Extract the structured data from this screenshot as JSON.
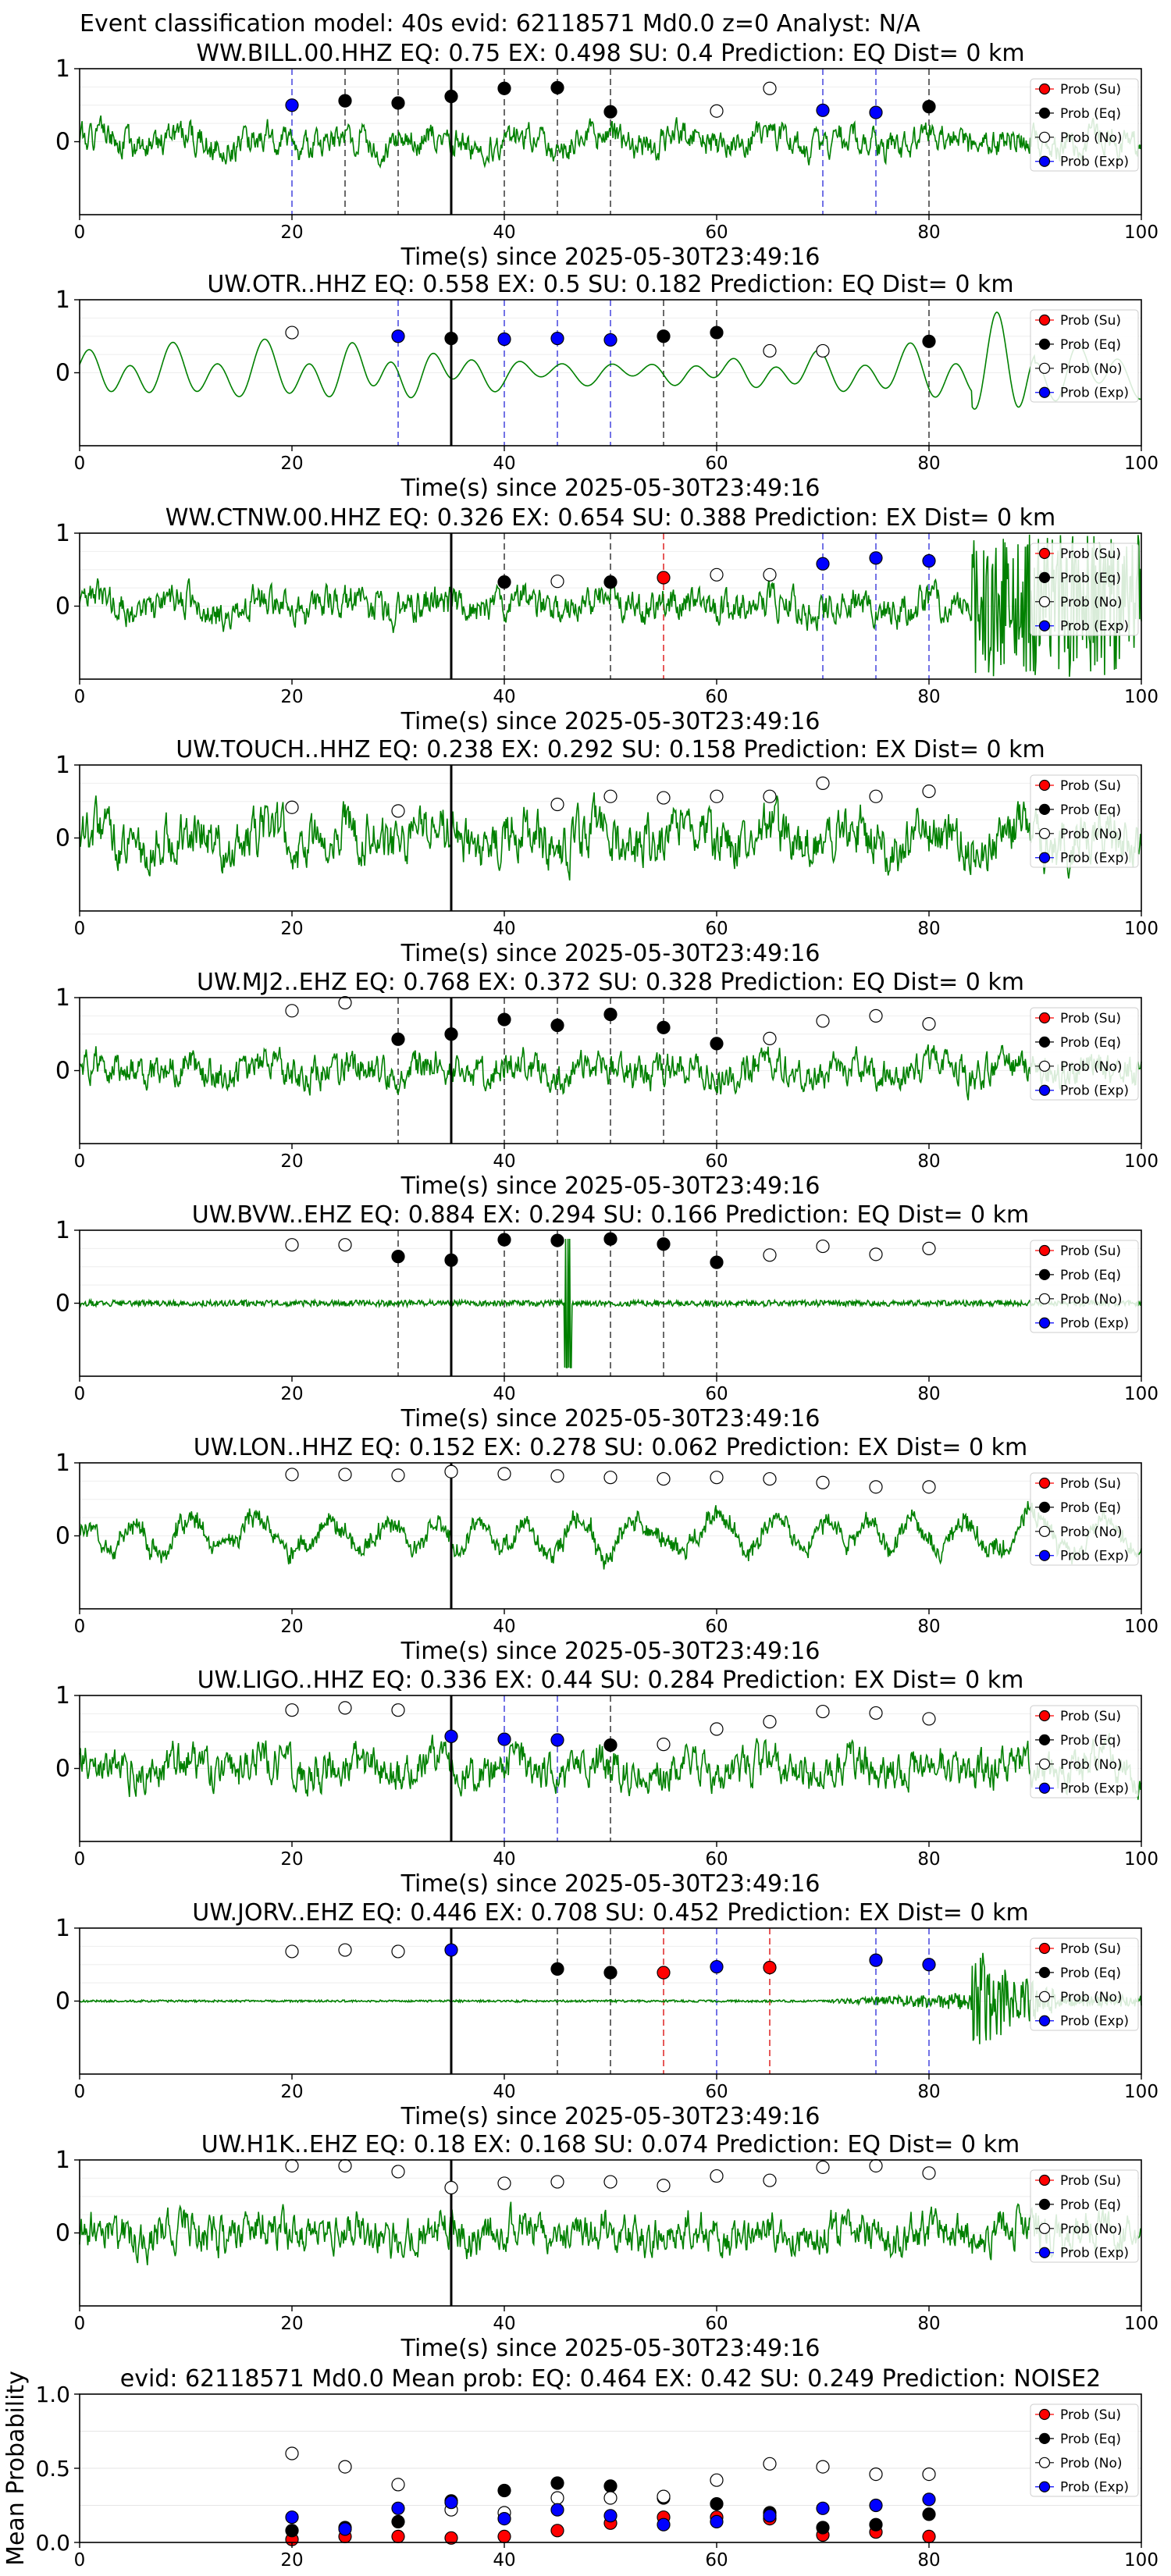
{
  "figure_title": "Event classification model: 40s evid: 62118571 Md0.0 z=0 Analyst: N/A",
  "legend_labels": [
    "Prob (Su)",
    "Prob (Eq)",
    "Prob (No)",
    "Prob (Exp)"
  ],
  "colors": {
    "su": "#ff0000",
    "eq": "#000000",
    "no": "#ffffff",
    "exp": "#0000ff",
    "trace": "#008000"
  },
  "chart_data": [
    {
      "type": "line",
      "station": "WW.BILL.00.HHZ",
      "title": "WW.BILL.00.HHZ   EQ: 0.75  EX: 0.498  SU: 0.4   Prediction: EQ    Dist= 0 km",
      "xlabel": "Time(s) since 2025-05-30T23:49:16",
      "xlim": [
        0,
        100
      ],
      "ylim": [
        -1,
        1
      ],
      "x_ticks": [
        "0",
        "20",
        "40",
        "60",
        "80",
        "100"
      ],
      "y_ticks": [
        "1",
        "0"
      ],
      "pick_time": 35,
      "waveform": {
        "style": "noise",
        "amp": 0.26,
        "seed": 1
      },
      "points": [
        {
          "x": 20,
          "y": 0.5,
          "c": "exp"
        },
        {
          "x": 25,
          "y": 0.56,
          "c": "eq"
        },
        {
          "x": 30,
          "y": 0.53,
          "c": "eq"
        },
        {
          "x": 35,
          "y": 0.62,
          "c": "eq"
        },
        {
          "x": 40,
          "y": 0.73,
          "c": "eq"
        },
        {
          "x": 45,
          "y": 0.74,
          "c": "eq"
        },
        {
          "x": 50,
          "y": 0.41,
          "c": "eq"
        },
        {
          "x": 60,
          "y": 0.42,
          "c": "no"
        },
        {
          "x": 65,
          "y": 0.73,
          "c": "no"
        },
        {
          "x": 70,
          "y": 0.43,
          "c": "exp"
        },
        {
          "x": 75,
          "y": 0.4,
          "c": "exp"
        },
        {
          "x": 80,
          "y": 0.48,
          "c": "eq"
        }
      ]
    },
    {
      "type": "line",
      "station": "UW.OTR..HHZ",
      "title": "UW.OTR..HHZ   EQ: 0.558  EX: 0.5  SU: 0.182   Prediction: EQ    Dist= 0 km",
      "xlabel": "Time(s) since 2025-05-30T23:49:16",
      "xlim": [
        0,
        100
      ],
      "ylim": [
        -1,
        1
      ],
      "x_ticks": [
        "0",
        "20",
        "40",
        "60",
        "80",
        "100"
      ],
      "y_ticks": [
        "1",
        "0"
      ],
      "pick_time": 35,
      "waveform": {
        "style": "smooth",
        "amp": 0.45,
        "seed": 2
      },
      "points": [
        {
          "x": 20,
          "y": 0.55,
          "c": "no"
        },
        {
          "x": 30,
          "y": 0.5,
          "c": "exp"
        },
        {
          "x": 35,
          "y": 0.47,
          "c": "eq"
        },
        {
          "x": 40,
          "y": 0.46,
          "c": "exp"
        },
        {
          "x": 45,
          "y": 0.47,
          "c": "exp"
        },
        {
          "x": 50,
          "y": 0.45,
          "c": "exp"
        },
        {
          "x": 55,
          "y": 0.5,
          "c": "eq"
        },
        {
          "x": 60,
          "y": 0.55,
          "c": "eq"
        },
        {
          "x": 65,
          "y": 0.3,
          "c": "no"
        },
        {
          "x": 70,
          "y": 0.3,
          "c": "no"
        },
        {
          "x": 80,
          "y": 0.43,
          "c": "eq"
        }
      ]
    },
    {
      "type": "line",
      "station": "WW.CTNW.00.HHZ",
      "title": "WW.CTNW.00.HHZ   EQ: 0.326  EX: 0.654  SU: 0.388   Prediction: EX    Dist= 0 km",
      "xlabel": "Time(s) since 2025-05-30T23:49:16",
      "xlim": [
        0,
        100
      ],
      "ylim": [
        -1,
        1
      ],
      "x_ticks": [
        "0",
        "20",
        "40",
        "60",
        "80",
        "100"
      ],
      "y_ticks": [
        "1",
        "0"
      ],
      "pick_time": 35,
      "waveform": {
        "style": "noise",
        "amp": 0.3,
        "seed": 3,
        "burst": [
          84,
          100,
          1.0
        ]
      },
      "points": [
        {
          "x": 40,
          "y": 0.33,
          "c": "eq"
        },
        {
          "x": 45,
          "y": 0.34,
          "c": "no"
        },
        {
          "x": 50,
          "y": 0.33,
          "c": "eq"
        },
        {
          "x": 55,
          "y": 0.39,
          "c": "su"
        },
        {
          "x": 60,
          "y": 0.43,
          "c": "no"
        },
        {
          "x": 65,
          "y": 0.43,
          "c": "no"
        },
        {
          "x": 70,
          "y": 0.58,
          "c": "exp"
        },
        {
          "x": 75,
          "y": 0.66,
          "c": "exp"
        },
        {
          "x": 80,
          "y": 0.62,
          "c": "exp"
        }
      ]
    },
    {
      "type": "line",
      "station": "UW.TOUCH..HHZ",
      "title": "UW.TOUCH..HHZ   EQ: 0.238  EX: 0.292  SU: 0.158   Prediction: EX    Dist= 0 km",
      "xlabel": "Time(s) since 2025-05-30T23:49:16",
      "xlim": [
        0,
        100
      ],
      "ylim": [
        -1,
        1
      ],
      "x_ticks": [
        "0",
        "20",
        "40",
        "60",
        "80",
        "100"
      ],
      "y_ticks": [
        "1",
        "0"
      ],
      "pick_time": 35,
      "waveform": {
        "style": "noise",
        "amp": 0.45,
        "seed": 4
      },
      "points": [
        {
          "x": 20,
          "y": 0.42,
          "c": "no"
        },
        {
          "x": 30,
          "y": 0.37,
          "c": "no"
        },
        {
          "x": 45,
          "y": 0.46,
          "c": "no"
        },
        {
          "x": 50,
          "y": 0.57,
          "c": "no"
        },
        {
          "x": 55,
          "y": 0.55,
          "c": "no"
        },
        {
          "x": 60,
          "y": 0.57,
          "c": "no"
        },
        {
          "x": 65,
          "y": 0.57,
          "c": "no"
        },
        {
          "x": 70,
          "y": 0.75,
          "c": "no"
        },
        {
          "x": 75,
          "y": 0.57,
          "c": "no"
        },
        {
          "x": 80,
          "y": 0.64,
          "c": "no"
        }
      ]
    },
    {
      "type": "line",
      "station": "UW.MJ2..EHZ",
      "title": "UW.MJ2..EHZ   EQ: 0.768  EX: 0.372  SU: 0.328   Prediction: EQ    Dist= 0 km",
      "xlabel": "Time(s) since 2025-05-30T23:49:16",
      "xlim": [
        0,
        100
      ],
      "ylim": [
        -1,
        1
      ],
      "x_ticks": [
        "0",
        "20",
        "40",
        "60",
        "80",
        "100"
      ],
      "y_ticks": [
        "1",
        "0"
      ],
      "pick_time": 35,
      "waveform": {
        "style": "noise",
        "amp": 0.3,
        "seed": 5
      },
      "points": [
        {
          "x": 20,
          "y": 0.82,
          "c": "no"
        },
        {
          "x": 25,
          "y": 0.93,
          "c": "no"
        },
        {
          "x": 30,
          "y": 0.43,
          "c": "eq"
        },
        {
          "x": 35,
          "y": 0.5,
          "c": "eq"
        },
        {
          "x": 40,
          "y": 0.7,
          "c": "eq"
        },
        {
          "x": 45,
          "y": 0.62,
          "c": "eq"
        },
        {
          "x": 50,
          "y": 0.77,
          "c": "eq"
        },
        {
          "x": 55,
          "y": 0.59,
          "c": "eq"
        },
        {
          "x": 60,
          "y": 0.37,
          "c": "eq"
        },
        {
          "x": 65,
          "y": 0.44,
          "c": "no"
        },
        {
          "x": 70,
          "y": 0.68,
          "c": "no"
        },
        {
          "x": 75,
          "y": 0.75,
          "c": "no"
        },
        {
          "x": 80,
          "y": 0.64,
          "c": "no"
        }
      ]
    },
    {
      "type": "line",
      "station": "UW.BVW..EHZ",
      "title": "UW.BVW..EHZ   EQ: 0.884  EX: 0.294  SU: 0.166   Prediction: EQ    Dist= 0 km",
      "xlabel": "Time(s) since 2025-05-30T23:49:16",
      "xlim": [
        0,
        100
      ],
      "ylim": [
        -1,
        1
      ],
      "x_ticks": [
        "0",
        "20",
        "40",
        "60",
        "80",
        "100"
      ],
      "y_ticks": [
        "1",
        "0"
      ],
      "pick_time": 35,
      "waveform": {
        "style": "quiet",
        "amp": 0.07,
        "seed": 6,
        "spike": [
          46,
          0.9
        ]
      },
      "points": [
        {
          "x": 20,
          "y": 0.8,
          "c": "no"
        },
        {
          "x": 25,
          "y": 0.8,
          "c": "no"
        },
        {
          "x": 30,
          "y": 0.64,
          "c": "eq"
        },
        {
          "x": 35,
          "y": 0.59,
          "c": "eq"
        },
        {
          "x": 40,
          "y": 0.87,
          "c": "eq"
        },
        {
          "x": 45,
          "y": 0.86,
          "c": "eq"
        },
        {
          "x": 50,
          "y": 0.88,
          "c": "eq"
        },
        {
          "x": 55,
          "y": 0.81,
          "c": "eq"
        },
        {
          "x": 60,
          "y": 0.56,
          "c": "eq"
        },
        {
          "x": 65,
          "y": 0.66,
          "c": "no"
        },
        {
          "x": 70,
          "y": 0.78,
          "c": "no"
        },
        {
          "x": 75,
          "y": 0.67,
          "c": "no"
        },
        {
          "x": 80,
          "y": 0.75,
          "c": "no"
        }
      ]
    },
    {
      "type": "line",
      "station": "UW.LON..HHZ",
      "title": "UW.LON..HHZ   EQ: 0.152  EX: 0.278  SU: 0.062   Prediction: EX    Dist= 0 km",
      "xlabel": "Time(s) since 2025-05-30T23:49:16",
      "xlim": [
        0,
        100
      ],
      "ylim": [
        -1,
        1
      ],
      "x_ticks": [
        "0",
        "20",
        "40",
        "60",
        "80",
        "100"
      ],
      "y_ticks": [
        "1",
        "0"
      ],
      "pick_time": 35,
      "waveform": {
        "style": "mixed",
        "amp": 0.4,
        "seed": 7
      },
      "points": [
        {
          "x": 20,
          "y": 0.84,
          "c": "no"
        },
        {
          "x": 25,
          "y": 0.84,
          "c": "no"
        },
        {
          "x": 30,
          "y": 0.83,
          "c": "no"
        },
        {
          "x": 35,
          "y": 0.88,
          "c": "no"
        },
        {
          "x": 40,
          "y": 0.85,
          "c": "no"
        },
        {
          "x": 45,
          "y": 0.82,
          "c": "no"
        },
        {
          "x": 50,
          "y": 0.8,
          "c": "no"
        },
        {
          "x": 55,
          "y": 0.78,
          "c": "no"
        },
        {
          "x": 60,
          "y": 0.8,
          "c": "no"
        },
        {
          "x": 65,
          "y": 0.78,
          "c": "no"
        },
        {
          "x": 70,
          "y": 0.73,
          "c": "no"
        },
        {
          "x": 75,
          "y": 0.67,
          "c": "no"
        },
        {
          "x": 80,
          "y": 0.67,
          "c": "no"
        }
      ]
    },
    {
      "type": "line",
      "station": "UW.LIGO..HHZ",
      "title": "UW.LIGO..HHZ   EQ: 0.336  EX: 0.44  SU: 0.284   Prediction: EX    Dist= 0 km",
      "xlabel": "Time(s) since 2025-05-30T23:49:16",
      "xlim": [
        0,
        100
      ],
      "ylim": [
        -1,
        1
      ],
      "x_ticks": [
        "0",
        "20",
        "40",
        "60",
        "80",
        "100"
      ],
      "y_ticks": [
        "1",
        "0"
      ],
      "pick_time": 35,
      "waveform": {
        "style": "noise",
        "amp": 0.35,
        "seed": 8
      },
      "points": [
        {
          "x": 20,
          "y": 0.8,
          "c": "no"
        },
        {
          "x": 25,
          "y": 0.83,
          "c": "no"
        },
        {
          "x": 30,
          "y": 0.8,
          "c": "no"
        },
        {
          "x": 35,
          "y": 0.44,
          "c": "exp"
        },
        {
          "x": 40,
          "y": 0.4,
          "c": "exp"
        },
        {
          "x": 45,
          "y": 0.39,
          "c": "exp"
        },
        {
          "x": 50,
          "y": 0.32,
          "c": "eq"
        },
        {
          "x": 55,
          "y": 0.33,
          "c": "no"
        },
        {
          "x": 60,
          "y": 0.54,
          "c": "no"
        },
        {
          "x": 65,
          "y": 0.64,
          "c": "no"
        },
        {
          "x": 70,
          "y": 0.78,
          "c": "no"
        },
        {
          "x": 75,
          "y": 0.76,
          "c": "no"
        },
        {
          "x": 80,
          "y": 0.68,
          "c": "no"
        }
      ]
    },
    {
      "type": "line",
      "station": "UW.JORV..EHZ",
      "title": "UW.JORV..EHZ   EQ: 0.446  EX: 0.708  SU: 0.452   Prediction: EX    Dist= 0 km",
      "xlabel": "Time(s) since 2025-05-30T23:49:16",
      "xlim": [
        0,
        100
      ],
      "ylim": [
        -1,
        1
      ],
      "x_ticks": [
        "0",
        "20",
        "40",
        "60",
        "80",
        "100"
      ],
      "y_ticks": [
        "1",
        "0"
      ],
      "pick_time": 35,
      "waveform": {
        "style": "jorv",
        "amp": 0.02,
        "seed": 9
      },
      "points": [
        {
          "x": 20,
          "y": 0.68,
          "c": "no"
        },
        {
          "x": 25,
          "y": 0.7,
          "c": "no"
        },
        {
          "x": 30,
          "y": 0.68,
          "c": "no"
        },
        {
          "x": 35,
          "y": 0.7,
          "c": "exp"
        },
        {
          "x": 45,
          "y": 0.44,
          "c": "eq"
        },
        {
          "x": 50,
          "y": 0.39,
          "c": "eq"
        },
        {
          "x": 55,
          "y": 0.39,
          "c": "su"
        },
        {
          "x": 60,
          "y": 0.47,
          "c": "exp"
        },
        {
          "x": 65,
          "y": 0.46,
          "c": "su"
        },
        {
          "x": 75,
          "y": 0.56,
          "c": "exp"
        },
        {
          "x": 80,
          "y": 0.5,
          "c": "exp"
        }
      ]
    },
    {
      "type": "line",
      "station": "UW.H1K..EHZ",
      "title": "UW.H1K..EHZ   EQ: 0.18  EX: 0.168  SU: 0.074   Prediction: EQ    Dist= 0 km",
      "xlabel": "Time(s) since 2025-05-30T23:49:16",
      "xlim": [
        0,
        100
      ],
      "ylim": [
        -1,
        1
      ],
      "x_ticks": [
        "0",
        "20",
        "40",
        "60",
        "80",
        "100"
      ],
      "y_ticks": [
        "1",
        "0"
      ],
      "pick_time": 35,
      "waveform": {
        "style": "noise",
        "amp": 0.35,
        "seed": 10
      },
      "points": [
        {
          "x": 20,
          "y": 0.92,
          "c": "no"
        },
        {
          "x": 25,
          "y": 0.92,
          "c": "no"
        },
        {
          "x": 30,
          "y": 0.84,
          "c": "no"
        },
        {
          "x": 35,
          "y": 0.62,
          "c": "no"
        },
        {
          "x": 40,
          "y": 0.68,
          "c": "no"
        },
        {
          "x": 45,
          "y": 0.7,
          "c": "no"
        },
        {
          "x": 50,
          "y": 0.7,
          "c": "no"
        },
        {
          "x": 55,
          "y": 0.65,
          "c": "no"
        },
        {
          "x": 60,
          "y": 0.78,
          "c": "no"
        },
        {
          "x": 65,
          "y": 0.72,
          "c": "no"
        },
        {
          "x": 70,
          "y": 0.9,
          "c": "no"
        },
        {
          "x": 75,
          "y": 0.92,
          "c": "no"
        },
        {
          "x": 80,
          "y": 0.82,
          "c": "no"
        }
      ]
    },
    {
      "type": "scatter",
      "title": "evid: 62118571   Md0.0   Mean prob:   EQ: 0.464  EX: 0.42  SU: 0.249   Prediction: NOISE2",
      "ylabel": "Mean Probability",
      "xlim": [
        0,
        100
      ],
      "ylim": [
        0,
        1
      ],
      "x_ticks": [
        "0",
        "20",
        "40",
        "60",
        "80",
        "100"
      ],
      "y_ticks": [
        "0.0",
        "0.5",
        "1.0"
      ],
      "series": [
        {
          "name": "Prob (Su)",
          "c": "su",
          "x": [
            20,
            25,
            30,
            35,
            40,
            45,
            50,
            55,
            60,
            65,
            70,
            75,
            80
          ],
          "y": [
            0.02,
            0.04,
            0.04,
            0.03,
            0.04,
            0.08,
            0.13,
            0.17,
            0.17,
            0.16,
            0.05,
            0.07,
            0.04
          ]
        },
        {
          "name": "Prob (Eq)",
          "c": "eq",
          "x": [
            20,
            25,
            30,
            35,
            40,
            45,
            50,
            55,
            60,
            65,
            70,
            75,
            80
          ],
          "y": [
            0.08,
            0.1,
            0.14,
            0.28,
            0.35,
            0.4,
            0.38,
            0.3,
            0.26,
            0.2,
            0.1,
            0.12,
            0.19
          ]
        },
        {
          "name": "Prob (No)",
          "c": "no",
          "x": [
            20,
            25,
            30,
            35,
            40,
            45,
            50,
            55,
            60,
            65,
            70,
            75,
            80
          ],
          "y": [
            0.6,
            0.51,
            0.39,
            0.22,
            0.2,
            0.3,
            0.3,
            0.31,
            0.42,
            0.53,
            0.51,
            0.46,
            0.46
          ]
        },
        {
          "name": "Prob (Exp)",
          "c": "exp",
          "x": [
            20,
            25,
            30,
            35,
            40,
            45,
            50,
            55,
            60,
            65,
            70,
            75,
            80
          ],
          "y": [
            0.17,
            0.09,
            0.23,
            0.27,
            0.16,
            0.22,
            0.18,
            0.12,
            0.14,
            0.18,
            0.23,
            0.25,
            0.29
          ]
        }
      ]
    }
  ]
}
